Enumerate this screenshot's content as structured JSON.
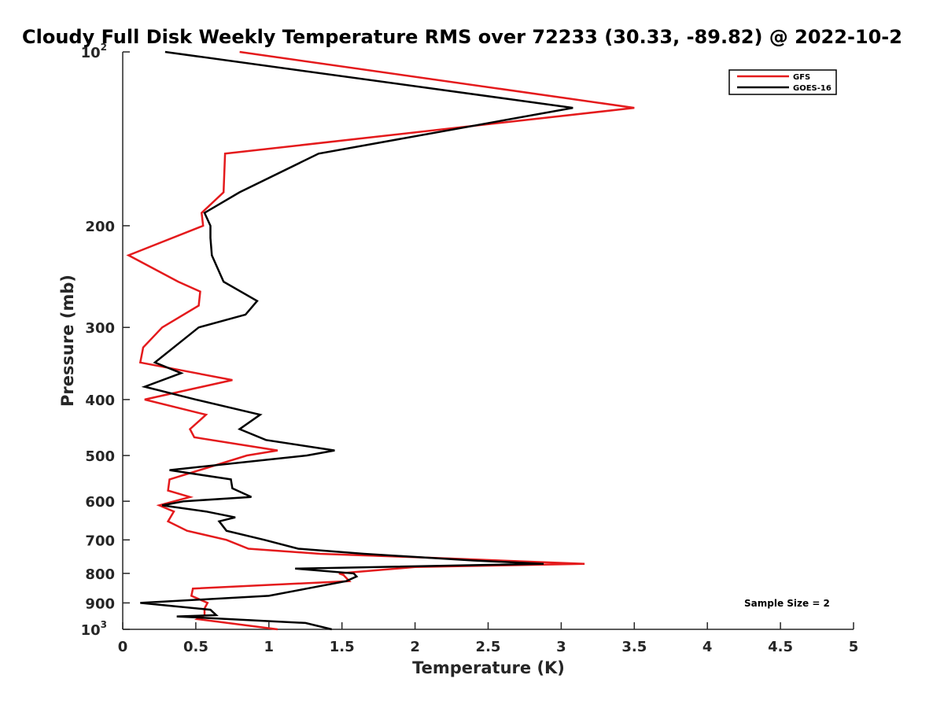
{
  "chart_data": {
    "type": "line",
    "title": "Cloudy Full Disk Weekly Temperature RMS over 72233 (30.33, -89.82) @ 2022-10-2",
    "xlabel": "Temperature (K)",
    "ylabel": "Pressure (mb)",
    "xlim": [
      0,
      5
    ],
    "ylim": [
      100,
      1000
    ],
    "y_scale": "log",
    "y_reversed": true,
    "grid": false,
    "legend_position": "top-right",
    "x_ticks": [
      "0",
      "0.5",
      "1",
      "1.5",
      "2",
      "2.5",
      "3",
      "3.5",
      "4",
      "4.5",
      "5"
    ],
    "y_ticks": [
      {
        "value": 100,
        "base": "10",
        "exp": "2"
      },
      {
        "value": 200,
        "label": "200"
      },
      {
        "value": 300,
        "label": "300"
      },
      {
        "value": 400,
        "label": "400"
      },
      {
        "value": 500,
        "label": "500"
      },
      {
        "value": 600,
        "label": "600"
      },
      {
        "value": 700,
        "label": "700"
      },
      {
        "value": 800,
        "label": "800"
      },
      {
        "value": 900,
        "label": "900"
      },
      {
        "value": 1000,
        "base": "10",
        "exp": "3"
      }
    ],
    "annotation": "Sample Size = 2",
    "series": [
      {
        "name": "GFS",
        "color": "#e41a1c",
        "points": [
          [
            0.8,
            100
          ],
          [
            3.5,
            125
          ],
          [
            0.7,
            150
          ],
          [
            0.69,
            175
          ],
          [
            0.54,
            190
          ],
          [
            0.55,
            200
          ],
          [
            0.04,
            225
          ],
          [
            0.38,
            250
          ],
          [
            0.53,
            260
          ],
          [
            0.52,
            275
          ],
          [
            0.27,
            300
          ],
          [
            0.14,
            325
          ],
          [
            0.12,
            345
          ],
          [
            0.75,
            370
          ],
          [
            0.15,
            400
          ],
          [
            0.57,
            425
          ],
          [
            0.46,
            450
          ],
          [
            0.49,
            465
          ],
          [
            1.06,
            490
          ],
          [
            0.85,
            500
          ],
          [
            0.32,
            550
          ],
          [
            0.31,
            575
          ],
          [
            0.46,
            590
          ],
          [
            0.25,
            610
          ],
          [
            0.35,
            625
          ],
          [
            0.31,
            650
          ],
          [
            0.44,
            675
          ],
          [
            0.71,
            700
          ],
          [
            0.86,
            725
          ],
          [
            1.35,
            740
          ],
          [
            2.0,
            750
          ],
          [
            3.16,
            770
          ],
          [
            2.0,
            780
          ],
          [
            1.48,
            800
          ],
          [
            1.51,
            805
          ],
          [
            1.55,
            825
          ],
          [
            0.48,
            850
          ],
          [
            0.47,
            875
          ],
          [
            0.58,
            900
          ],
          [
            0.56,
            920
          ],
          [
            0.56,
            945
          ],
          [
            0.51,
            960
          ],
          [
            1.06,
            1000
          ]
        ]
      },
      {
        "name": "GOES-16",
        "color": "#000000",
        "points": [
          [
            0.29,
            100
          ],
          [
            3.08,
            125
          ],
          [
            1.34,
            150
          ],
          [
            0.8,
            175
          ],
          [
            0.56,
            190
          ],
          [
            0.6,
            200
          ],
          [
            0.6,
            210
          ],
          [
            0.61,
            225
          ],
          [
            0.69,
            250
          ],
          [
            0.92,
            270
          ],
          [
            0.84,
            285
          ],
          [
            0.52,
            300
          ],
          [
            0.22,
            345
          ],
          [
            0.4,
            360
          ],
          [
            0.15,
            380
          ],
          [
            0.5,
            400
          ],
          [
            0.94,
            425
          ],
          [
            0.8,
            450
          ],
          [
            0.98,
            470
          ],
          [
            1.45,
            490
          ],
          [
            1.26,
            500
          ],
          [
            0.32,
            530
          ],
          [
            0.74,
            550
          ],
          [
            0.75,
            570
          ],
          [
            0.88,
            590
          ],
          [
            0.42,
            600
          ],
          [
            0.27,
            610
          ],
          [
            0.57,
            625
          ],
          [
            0.77,
            640
          ],
          [
            0.66,
            650
          ],
          [
            0.71,
            675
          ],
          [
            0.97,
            700
          ],
          [
            1.2,
            725
          ],
          [
            1.65,
            740
          ],
          [
            2.4,
            760
          ],
          [
            2.88,
            770
          ],
          [
            1.18,
            785
          ],
          [
            1.58,
            800
          ],
          [
            1.6,
            810
          ],
          [
            1.53,
            825
          ],
          [
            1.26,
            850
          ],
          [
            1.0,
            875
          ],
          [
            0.12,
            900
          ],
          [
            0.6,
            925
          ],
          [
            0.64,
            945
          ],
          [
            0.37,
            950
          ],
          [
            1.25,
            975
          ],
          [
            1.43,
            1000
          ]
        ]
      }
    ]
  }
}
